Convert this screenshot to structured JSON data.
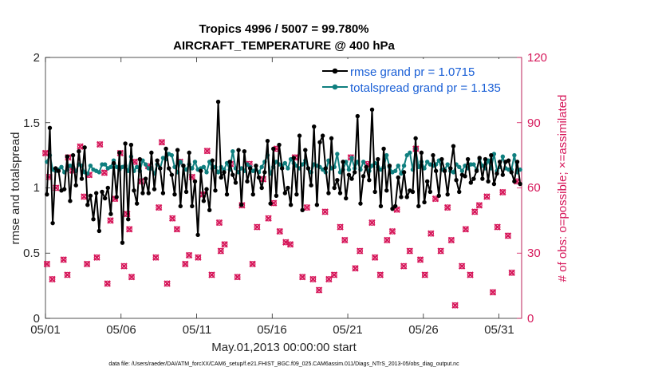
{
  "chart_data": {
    "type": "line",
    "title": "Tropics 4996 / 5007 = 99.780%",
    "subtitle": "AIRCRAFT_TEMPERATURE @ 400 hPa",
    "xlabel": "May.01,2013 00:00:00 start",
    "ylabel": "rmse and totalspread",
    "ylabel_right": "# of obs: o=possible; ×=assimilated",
    "xlim": [
      0,
      31.5
    ],
    "ylim": [
      0,
      2
    ],
    "ylim_right": [
      0,
      120
    ],
    "x_ticks": [
      0,
      5,
      10,
      15,
      20,
      25,
      30
    ],
    "x_tick_labels": [
      "05/01",
      "05/06",
      "05/11",
      "05/16",
      "05/21",
      "05/26",
      "05/31"
    ],
    "y_ticks": [
      0,
      0.5,
      1,
      1.5,
      2
    ],
    "y_tick_labels": [
      "0",
      "0.5",
      "1",
      "1.5",
      "2"
    ],
    "y_right_ticks": [
      0,
      30,
      60,
      90,
      120
    ],
    "y_right_tick_labels": [
      "0",
      "30",
      "60",
      "90",
      "120"
    ],
    "legend": {
      "placement": "top-right",
      "entries": [
        "rmse grand pr = 1.0715",
        "totalspread grand pr = 1.135"
      ]
    },
    "footnote": "data file: /Users/raeder/DAI/ATM_forcXX/CAM6_setup/f.e21.FHIST_BGC.f09_025.CAM6assim.011/Diags_NTrS_2013-05/obs_diag_output.nc",
    "colors": {
      "rmse": "#000000",
      "totalspread": "#0f7f7f",
      "obs": "#d6175a",
      "legend_text": "#1a5fd6"
    },
    "series": [
      {
        "name": "rmse",
        "values": [
          0.95,
          1.46,
          0.73,
          1.15,
          1.13,
          0.98,
          0.99,
          1.24,
          0.9,
          1.25,
          1.02,
          1.28,
          1.07,
          1.31,
          0.87,
          0.94,
          0.76,
          0.96,
          0.67,
          0.97,
          0.92,
          1.0,
          0.8,
          1.19,
          0.93,
          1.27,
          0.58,
          1.34,
          0.76,
          1.33,
          0.98,
          0.88,
          1.22,
          0.96,
          1.07,
          0.96,
          1.27,
          0.99,
          1.21,
          1.15,
          0.96,
          1.3,
          1.15,
          1.1,
          0.95,
          1.29,
          0.86,
          1.17,
          0.97,
          1.27,
          0.86,
          1.05,
          0.64,
          1.13,
          0.9,
          0.99,
          0.83,
          1.21,
          0.98,
          1.66,
          1.08,
          1.12,
          0.95,
          1.2,
          1.1,
          1.04,
          1.29,
          0.87,
          1.28,
          1.05,
          1.15,
          0.95,
          1.17,
          1.08,
          1.0,
          1.12,
          1.36,
          0.88,
          1.3,
          0.94,
          1.33,
          1.15,
          0.96,
          1.0,
          0.87,
          1.23,
          0.95,
          1.4,
          0.83,
          1.29,
          1.15,
          1.02,
          1.47,
          0.87,
          1.35,
          1.4,
          1.15,
          0.96,
          1.38,
          1.0,
          1.06,
          0.96,
          1.2,
          0.92,
          1.1,
          1.07,
          1.12,
          1.55,
          0.88,
          1.09,
          1.16,
          1.06,
          1.6,
          0.97,
          1.22,
          0.86,
          1.3,
          0.98,
          1.17,
          0.84,
          0.86,
          1.08,
          0.93,
          1.12,
          0.93,
          0.98,
          0.97,
          1.38,
          0.86,
          1.27,
          0.89,
          1.05,
          0.97,
          1.25,
          1.13,
          0.94,
          1.22,
          1.13,
          0.95,
          1.15,
          1.32,
          1.06,
          0.97,
          1.1,
          1.09,
          1.22,
          1.04,
          1.07,
          1.13,
          1.23,
          1.07,
          1.22,
          1.05,
          1.25,
          1.03,
          1.11,
          1.2,
          1.1,
          1.2,
          1.21,
          1.12,
          1.05,
          1.2,
          1.03
        ]
      },
      {
        "name": "totalspread",
        "values": [
          1.2,
          1.25,
          1.14,
          1.13,
          1.14,
          1.16,
          1.12,
          1.14,
          1.17,
          1.16,
          1.13,
          1.18,
          1.17,
          1.12,
          1.11,
          1.17,
          1.14,
          1.13,
          1.12,
          1.18,
          1.18,
          1.15,
          1.16,
          1.21,
          1.16,
          1.14,
          1.16,
          1.17,
          1.13,
          1.24,
          1.13,
          1.16,
          1.13,
          1.21,
          1.18,
          1.15,
          1.15,
          1.11,
          1.18,
          1.15,
          1.23,
          1.22,
          1.26,
          1.25,
          1.16,
          1.12,
          1.2,
          1.17,
          1.14,
          1.18,
          1.15,
          1.2,
          1.14,
          1.15,
          1.16,
          1.12,
          1.2,
          1.15,
          1.16,
          1.12,
          1.16,
          1.14,
          1.19,
          1.14,
          1.28,
          1.15,
          1.12,
          1.15,
          1.13,
          1.18,
          1.16,
          1.13,
          1.14,
          1.12,
          1.16,
          1.2,
          1.25,
          1.11,
          1.16,
          1.2,
          1.18,
          1.17,
          1.19,
          1.15,
          1.22,
          1.19,
          1.17,
          1.15,
          1.18,
          1.21,
          1.15,
          1.12,
          1.18,
          1.17,
          1.16,
          1.14,
          1.12,
          1.21,
          1.15,
          1.16,
          1.26,
          1.12,
          1.14,
          1.2,
          1.14,
          1.23,
          1.15,
          1.2,
          1.14,
          1.2,
          1.16,
          1.13,
          1.17,
          1.19,
          1.16,
          1.14,
          1.16,
          1.25,
          1.16,
          1.12,
          1.13,
          1.17,
          1.11,
          1.17,
          1.25,
          1.27,
          1.14,
          1.3,
          1.16,
          1.2,
          1.15,
          1.2,
          1.18,
          1.17,
          1.18,
          1.21,
          1.14,
          1.14,
          1.18,
          1.13,
          1.12,
          1.18,
          1.16,
          1.13,
          1.17,
          1.15,
          1.18,
          1.18,
          1.14,
          1.22,
          1.17,
          1.15,
          1.21,
          1.15,
          1.26,
          1.13,
          1.16,
          1.24,
          1.15,
          1.14,
          1.14,
          1.25,
          1.12,
          1.14
        ]
      }
    ],
    "obs_points": [
      [
        0.0,
        76
      ],
      [
        0.1,
        25
      ],
      [
        0.25,
        65
      ],
      [
        0.45,
        18
      ],
      [
        0.7,
        60
      ],
      [
        1.2,
        27
      ],
      [
        1.45,
        20
      ],
      [
        1.5,
        74
      ],
      [
        1.8,
        68
      ],
      [
        2.3,
        79
      ],
      [
        2.55,
        56
      ],
      [
        2.75,
        25
      ],
      [
        2.9,
        66
      ],
      [
        3.4,
        28
      ],
      [
        3.6,
        80
      ],
      [
        3.9,
        67
      ],
      [
        4.1,
        16
      ],
      [
        4.3,
        45
      ],
      [
        4.6,
        55
      ],
      [
        4.95,
        76
      ],
      [
        5.2,
        24
      ],
      [
        5.4,
        48
      ],
      [
        5.55,
        41
      ],
      [
        5.7,
        19
      ],
      [
        5.9,
        72
      ],
      [
        6.3,
        63
      ],
      [
        6.8,
        70
      ],
      [
        7.3,
        28
      ],
      [
        7.5,
        51
      ],
      [
        7.7,
        81
      ],
      [
        8.05,
        16
      ],
      [
        8.4,
        46
      ],
      [
        8.7,
        41
      ],
      [
        8.9,
        72
      ],
      [
        9.25,
        25
      ],
      [
        9.5,
        29
      ],
      [
        9.7,
        65
      ],
      [
        10.1,
        28
      ],
      [
        10.4,
        57
      ],
      [
        10.7,
        77
      ],
      [
        11.0,
        20
      ],
      [
        11.5,
        44
      ],
      [
        11.6,
        31
      ],
      [
        11.85,
        34
      ],
      [
        12.25,
        71
      ],
      [
        12.7,
        19
      ],
      [
        13.0,
        52
      ],
      [
        13.5,
        71
      ],
      [
        13.7,
        25
      ],
      [
        14.0,
        42
      ],
      [
        14.4,
        64
      ],
      [
        14.75,
        46
      ],
      [
        15.1,
        53
      ],
      [
        15.3,
        78
      ],
      [
        15.5,
        40
      ],
      [
        15.9,
        35
      ],
      [
        16.2,
        34
      ],
      [
        16.5,
        74
      ],
      [
        17.0,
        19
      ],
      [
        17.3,
        51
      ],
      [
        17.7,
        18
      ],
      [
        18.1,
        13
      ],
      [
        18.5,
        49
      ],
      [
        18.75,
        18
      ],
      [
        19.1,
        20
      ],
      [
        19.5,
        42
      ],
      [
        19.8,
        36
      ],
      [
        20.2,
        74
      ],
      [
        20.5,
        23
      ],
      [
        20.8,
        31
      ],
      [
        21.3,
        71
      ],
      [
        21.6,
        44
      ],
      [
        21.8,
        28
      ],
      [
        22.15,
        20
      ],
      [
        22.6,
        36
      ],
      [
        22.95,
        40
      ],
      [
        23.25,
        50
      ],
      [
        23.7,
        24
      ],
      [
        24.1,
        31
      ],
      [
        24.5,
        78
      ],
      [
        24.8,
        27
      ],
      [
        25.1,
        20
      ],
      [
        25.5,
        39
      ],
      [
        25.8,
        55
      ],
      [
        26.15,
        31
      ],
      [
        26.6,
        51
      ],
      [
        26.85,
        36
      ],
      [
        27.1,
        6
      ],
      [
        27.55,
        24
      ],
      [
        27.8,
        41
      ],
      [
        28.1,
        20
      ],
      [
        28.4,
        49
      ],
      [
        28.7,
        52
      ],
      [
        29.2,
        56
      ],
      [
        29.6,
        12
      ],
      [
        29.9,
        42
      ],
      [
        30.25,
        58
      ],
      [
        30.6,
        38
      ],
      [
        30.85,
        21
      ],
      [
        31.2,
        63
      ]
    ]
  }
}
